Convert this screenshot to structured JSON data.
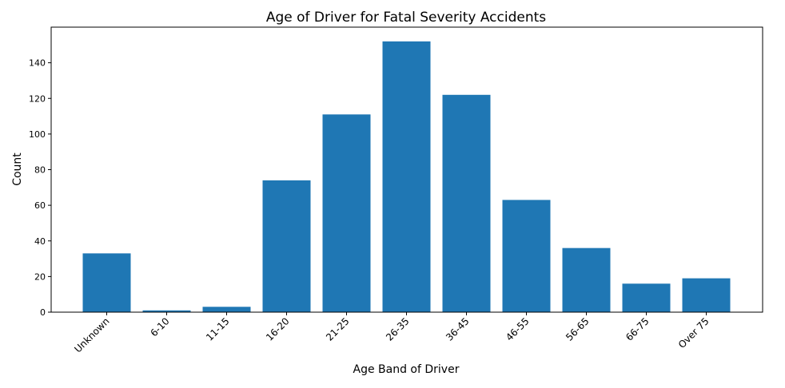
{
  "chart_data": {
    "type": "bar",
    "title": "Age of Driver for Fatal Severity Accidents",
    "xlabel": "Age Band of Driver",
    "ylabel": "Count",
    "categories": [
      "Unknown",
      "6-10",
      "11-15",
      "16-20",
      "21-25",
      "26-35",
      "36-45",
      "46-55",
      "56-65",
      "66-75",
      "Over 75"
    ],
    "values": [
      33,
      1,
      3,
      74,
      111,
      152,
      122,
      63,
      36,
      16,
      19
    ],
    "ylim": [
      0,
      160
    ],
    "yticks": [
      0,
      20,
      40,
      60,
      80,
      100,
      120,
      140
    ],
    "grid": false,
    "legend": "none",
    "bar_color": "#1f77b4"
  }
}
